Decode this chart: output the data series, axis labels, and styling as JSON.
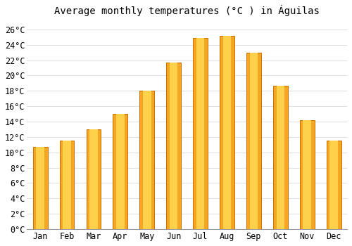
{
  "title": "Average monthly temperatures (°C ) in Águilas",
  "months": [
    "Jan",
    "Feb",
    "Mar",
    "Apr",
    "May",
    "Jun",
    "Jul",
    "Aug",
    "Sep",
    "Oct",
    "Nov",
    "Dec"
  ],
  "values": [
    10.7,
    11.5,
    13.0,
    15.0,
    18.0,
    21.7,
    24.9,
    25.2,
    23.0,
    18.7,
    14.2,
    11.5
  ],
  "bar_color_outer": "#F5A623",
  "bar_color_inner": "#FFD04A",
  "bar_edge_color": "#C87000",
  "background_color": "#FFFFFF",
  "grid_color": "#E0E0E0",
  "ylim": [
    0,
    27
  ],
  "ytick_step": 2,
  "title_fontsize": 10,
  "tick_fontsize": 8.5,
  "font_family": "monospace",
  "bar_width": 0.55
}
